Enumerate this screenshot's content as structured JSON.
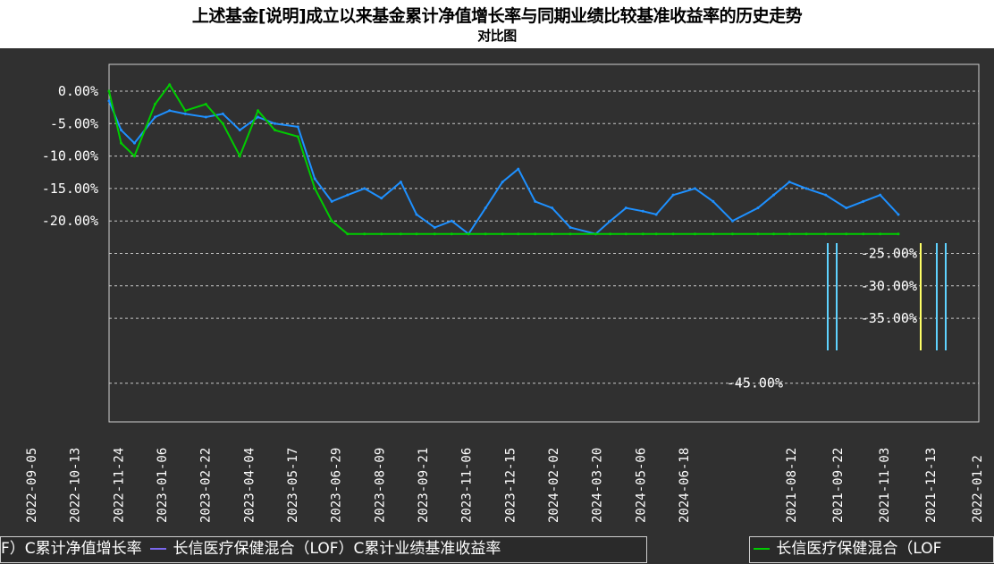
{
  "title": {
    "line1": "上述基金[说明]成立以来基金累计净值增长率与同期业绩比较基准收益率的历史走势",
    "line2": "对比图"
  },
  "colors": {
    "background": "#303030",
    "fund_series": "#1e90ff",
    "fund_series_alt": "#00cc00",
    "benchmark_series": "#7b68ee",
    "grid": "#c8c8c8",
    "cyan": "#5fd3ff",
    "yellow": "#ffff66",
    "red": "#ff4040"
  },
  "legend": {
    "left_entry_tail": "F）C累计净值增长率",
    "left_entry_2": "长信医疗保健混合（LOF）C累计业绩基准收益率",
    "right_entry": "长信医疗保健混合（LOF"
  },
  "chart_data": {
    "type": "line",
    "y_tick_labels": [
      "0.00%",
      "-5.00%",
      "-10.00%",
      "-15.00%",
      "-20.00%",
      "-25.00%",
      "-30.00%",
      "-35.00%",
      "-45.00%"
    ],
    "x_tick_labels": [
      "2022-09-05",
      "2022-10-13",
      "2022-11-24",
      "2023-01-06",
      "2023-02-22",
      "2023-04-04",
      "2023-05-17",
      "2023-06-29",
      "2023-08-09",
      "2023-09-21",
      "2023-11-06",
      "2023-12-15",
      "2024-02-02",
      "2024-03-20",
      "2024-05-06",
      "2024-06-18"
    ],
    "x_tick_labels_right": [
      "2021-08-12",
      "2021-09-22",
      "2021-11-03",
      "2021-12-13",
      "2022-01-2"
    ],
    "series": [
      {
        "name": "长信医疗保健混合（LOF）C累计净值增长率",
        "x": [
          "2022-09-05",
          "2022-09-15",
          "2022-09-26",
          "2022-10-13",
          "2022-10-25",
          "2022-11-07",
          "2022-11-24",
          "2022-12-08",
          "2022-12-22",
          "2023-01-06",
          "2023-01-20",
          "2023-02-08",
          "2023-02-22",
          "2023-03-08",
          "2023-03-21",
          "2023-04-04",
          "2023-04-18",
          "2023-05-04",
          "2023-05-17",
          "2023-06-01",
          "2023-06-15",
          "2023-06-29",
          "2023-07-13",
          "2023-07-27",
          "2023-08-09",
          "2023-08-23",
          "2023-09-06",
          "2023-09-21",
          "2023-10-12",
          "2023-10-24",
          "2023-11-06",
          "2023-11-20",
          "2023-12-01",
          "2023-12-15",
          "2024-01-02",
          "2024-01-17",
          "2024-02-02",
          "2024-02-23",
          "2024-03-07",
          "2024-03-20",
          "2024-04-03",
          "2024-04-19",
          "2024-05-06",
          "2024-05-20",
          "2024-06-03",
          "2024-06-18"
        ],
        "y": [
          -1.5,
          -6,
          -8,
          -4,
          -3,
          -3.5,
          -4,
          -3.5,
          -6,
          -4,
          -5,
          -5.5,
          -13.5,
          -17,
          -16,
          -15,
          -16.5,
          -14,
          -19,
          -21,
          -20,
          -22,
          -18,
          -14,
          -12,
          -17,
          -18,
          -21,
          -22,
          -20,
          -18,
          -18.5,
          -19,
          -16,
          -15,
          -17,
          -20,
          -18,
          -16,
          -14,
          -15,
          -16,
          -18,
          -17,
          -16,
          -19
        ]
      },
      {
        "name": "长信医疗保健混合（LOF）C累计业绩基准收益率",
        "x": [
          "2022-09-05",
          "2022-09-15",
          "2022-09-26",
          "2022-10-13",
          "2022-10-25",
          "2022-11-07",
          "2022-11-24",
          "2022-12-08",
          "2022-12-22",
          "2023-01-06",
          "2023-01-20",
          "2023-02-08",
          "2023-02-22",
          "2023-03-08",
          "2023-03-21",
          "2023-04-04",
          "2023-04-18",
          "2023-05-04",
          "2023-05-17",
          "2023-06-01",
          "2023-06-15",
          "2023-06-29",
          "2023-07-13",
          "2023-07-27",
          "2023-08-09",
          "2023-08-23",
          "2023-09-06",
          "2023-09-21",
          "2023-10-12",
          "2023-10-24",
          "2023-11-06",
          "2023-11-20",
          "2023-12-01",
          "2023-12-15",
          "2024-01-02",
          "2024-01-17",
          "2024-02-02",
          "2024-02-23",
          "2024-03-07",
          "2024-03-20",
          "2024-04-03",
          "2024-04-19",
          "2024-05-06",
          "2024-05-20",
          "2024-06-03",
          "2024-06-18"
        ],
        "y": [
          0,
          -8,
          -10,
          -2,
          1,
          -3,
          -2,
          -5,
          -10,
          -3,
          -6,
          -7,
          -15,
          -20,
          -22,
          -22,
          -22,
          -22,
          -22,
          -22,
          -22,
          -22,
          -22,
          -22,
          -22,
          -22,
          -22,
          -22,
          -22,
          -22,
          -22,
          -22,
          -22,
          -22,
          -22,
          -22,
          -22,
          -22,
          -22,
          -22,
          -22,
          -22,
          -22,
          -22,
          -22,
          -22
        ]
      }
    ]
  }
}
